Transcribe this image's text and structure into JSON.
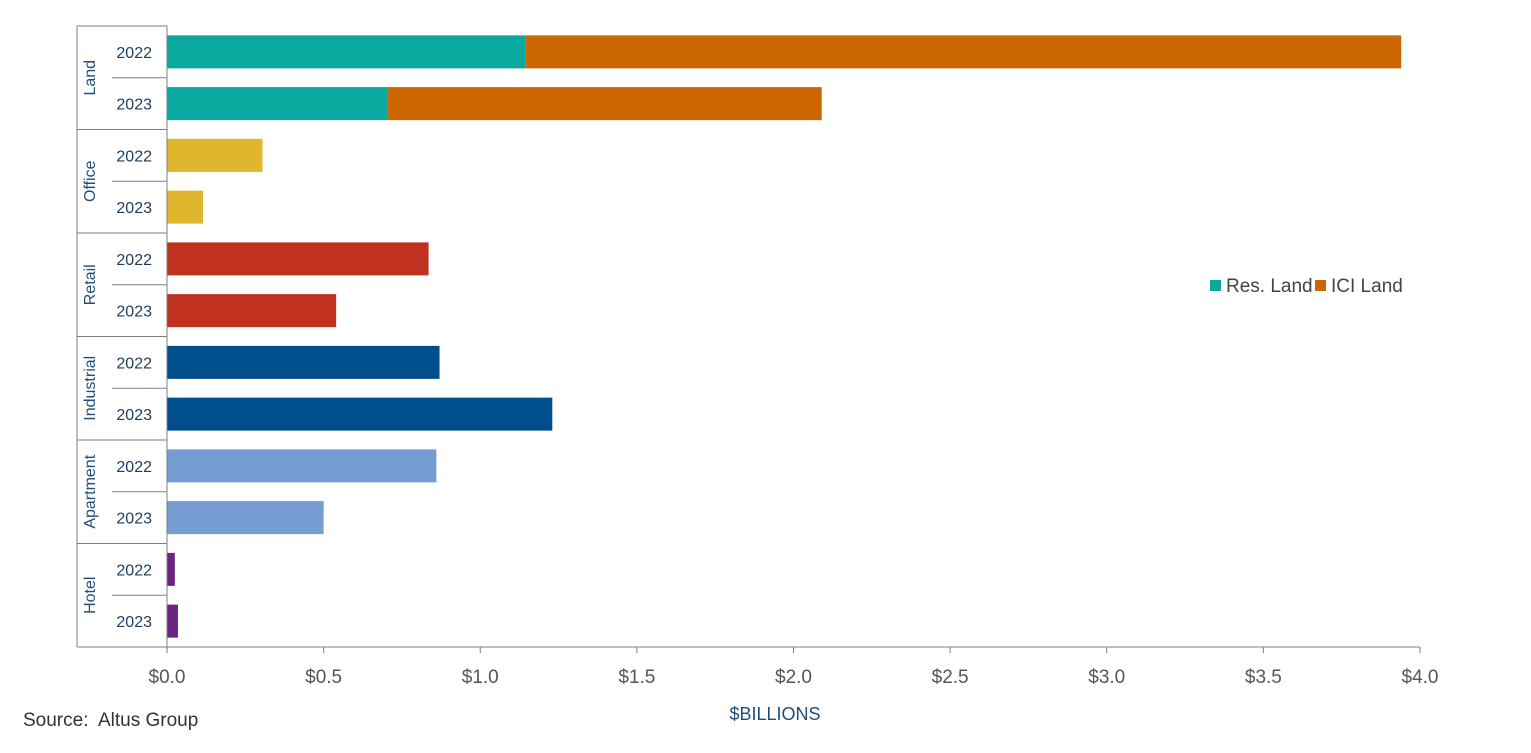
{
  "chart_data": {
    "type": "bar",
    "orientation": "horizontal",
    "stacked": true,
    "xlabel": "$BILLIONS",
    "xlim": [
      0,
      4
    ],
    "x_ticks": [
      "$0.0",
      "$0.5",
      "$1.0",
      "$1.5",
      "$2.0",
      "$2.5",
      "$3.0",
      "$3.5",
      "$4.0"
    ],
    "x_tick_values": [
      0,
      0.5,
      1,
      1.5,
      2,
      2.5,
      3,
      3.5,
      4
    ],
    "grid": false,
    "legend": {
      "position": "right",
      "entries": [
        {
          "name": "Res. Land",
          "color": "#0aa89e"
        },
        {
          "name": "ICI Land",
          "color": "#cc6600"
        }
      ]
    },
    "groups": [
      {
        "name": "Land",
        "rows": [
          {
            "year": "2022",
            "segments": [
              {
                "series": "Res. Land",
                "value": 1.145,
                "color": "#0aa89e"
              },
              {
                "series": "ICI Land",
                "value": 2.795,
                "color": "#cc6600"
              }
            ]
          },
          {
            "year": "2023",
            "segments": [
              {
                "series": "Res. Land",
                "value": 0.705,
                "color": "#0aa89e"
              },
              {
                "series": "ICI Land",
                "value": 1.385,
                "color": "#cc6600"
              }
            ]
          }
        ]
      },
      {
        "name": "Office",
        "rows": [
          {
            "year": "2022",
            "segments": [
              {
                "series": "Office",
                "value": 0.305,
                "color": "#e0b62e"
              }
            ]
          },
          {
            "year": "2023",
            "segments": [
              {
                "series": "Office",
                "value": 0.115,
                "color": "#e0b62e"
              }
            ]
          }
        ]
      },
      {
        "name": "Retail",
        "rows": [
          {
            "year": "2022",
            "segments": [
              {
                "series": "Retail",
                "value": 0.835,
                "color": "#c0311f"
              }
            ]
          },
          {
            "year": "2023",
            "segments": [
              {
                "series": "Retail",
                "value": 0.54,
                "color": "#c0311f"
              }
            ]
          }
        ]
      },
      {
        "name": "Industrial",
        "rows": [
          {
            "year": "2022",
            "segments": [
              {
                "series": "Industrial",
                "value": 0.87,
                "color": "#004e8c"
              }
            ]
          },
          {
            "year": "2023",
            "segments": [
              {
                "series": "Industrial",
                "value": 1.23,
                "color": "#004e8c"
              }
            ]
          }
        ]
      },
      {
        "name": "Apartment",
        "rows": [
          {
            "year": "2022",
            "segments": [
              {
                "series": "Apartment",
                "value": 0.86,
                "color": "#759dd1"
              }
            ]
          },
          {
            "year": "2023",
            "segments": [
              {
                "series": "Apartment",
                "value": 0.5,
                "color": "#759dd1"
              }
            ]
          }
        ]
      },
      {
        "name": "Hotel",
        "rows": [
          {
            "year": "2022",
            "segments": [
              {
                "series": "Hotel",
                "value": 0.025,
                "color": "#6b2480"
              }
            ]
          },
          {
            "year": "2023",
            "segments": [
              {
                "series": "Hotel",
                "value": 0.035,
                "color": "#6b2480"
              }
            ]
          }
        ]
      }
    ]
  },
  "source_note": "Source:  Altus Group"
}
